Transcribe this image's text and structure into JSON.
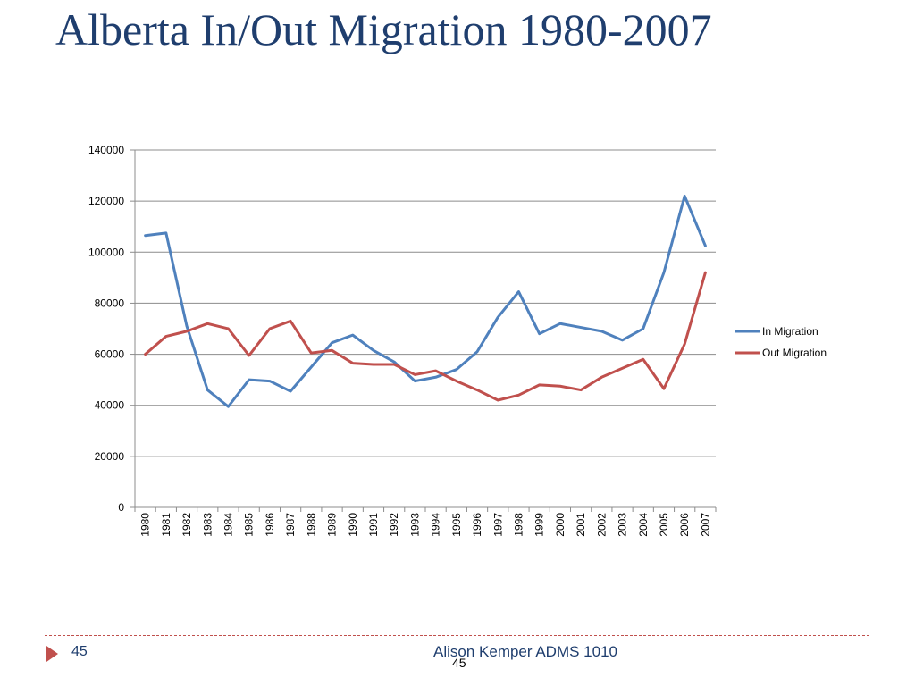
{
  "slide": {
    "title": "Alberta In/Out Migration 1980-2007",
    "footer_page": "45",
    "footer_author": "Alison Kemper ADMS 1010",
    "footer_page_center": "45"
  },
  "colors": {
    "title": "#1f3e6e",
    "in_migration": "#4f81bd",
    "out_migration": "#c0504d",
    "grid": "#8c8c8c",
    "footer_accent": "#c0504d"
  },
  "chart_data": {
    "type": "line",
    "title": "",
    "xlabel": "",
    "ylabel": "",
    "ylim": [
      0,
      140000
    ],
    "yticks": [
      "0",
      "20000",
      "40000",
      "60000",
      "80000",
      "100000",
      "120000",
      "140000"
    ],
    "grid": true,
    "legend_position": "right",
    "x": [
      "1980",
      "1981",
      "1982",
      "1983",
      "1984",
      "1985",
      "1986",
      "1987",
      "1988",
      "1989",
      "1990",
      "1991",
      "1992",
      "1993",
      "1994",
      "1995",
      "1996",
      "1997",
      "1998",
      "1999",
      "2000",
      "2001",
      "2002",
      "2003",
      "2004",
      "2005",
      "2006",
      "2007"
    ],
    "series": [
      {
        "name": "In Migration",
        "color": "#4f81bd",
        "values": [
          106500,
          107500,
          71000,
          46000,
          39500,
          50000,
          49500,
          45500,
          55000,
          64500,
          67500,
          61500,
          57000,
          49500,
          51000,
          54000,
          61000,
          74500,
          84500,
          68000,
          72000,
          70500,
          69000,
          65500,
          70000,
          92000,
          122000,
          102500
        ]
      },
      {
        "name": "Out Migration",
        "color": "#c0504d",
        "values": [
          60000,
          67000,
          69000,
          72000,
          70000,
          59500,
          70000,
          73000,
          60500,
          61500,
          56500,
          56000,
          56000,
          52000,
          53500,
          49500,
          46000,
          42000,
          44000,
          48000,
          47500,
          46000,
          51000,
          54500,
          58000,
          46500,
          64000,
          92000
        ]
      }
    ]
  }
}
